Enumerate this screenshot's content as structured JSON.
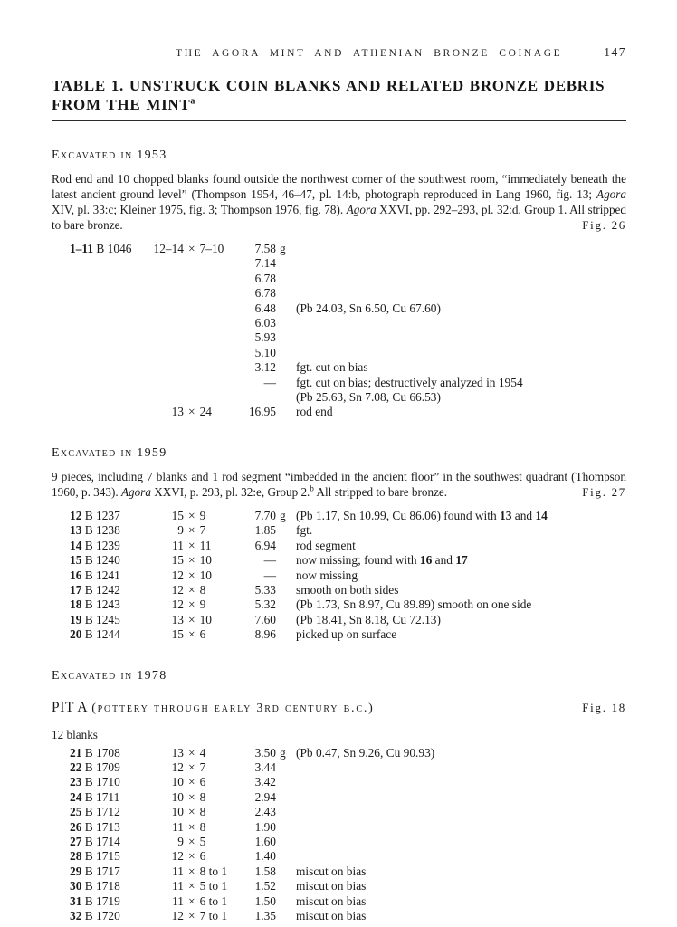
{
  "page": {
    "running_head": "THE AGORA MINT AND ATHENIAN BRONZE COINAGE",
    "page_number": "147",
    "title_line1": "TABLE 1. UNSTRUCK COIN BLANKS AND RELATED BRONZE DEBRIS",
    "title_line2": "FROM THE MINT",
    "title_note": "a"
  },
  "symbols": {
    "times": "×"
  },
  "sections": [
    {
      "heading": "Excavated in 1953",
      "intro": "Rod end and 10 chopped blanks found outside the northwest corner of the southwest room, “immediately beneath the latest ancient ground level” (Thompson 1954, 46–47, pl. 14:b, photograph reproduced in Lang 1960, fig. 13; *Agora* XIV, pl. 33:c; Kleiner 1975, fig. 3; Thompson 1976, fig. 78). *Agora* XXVI, pp. 292–293, pl. 32:d, Group 1. All stripped to bare bronze.",
      "fig": "Fig. 26",
      "rows": [
        {
          "num": "1–11",
          "id": "B 1046",
          "dim_w": "12–14",
          "dim_h": "7–10",
          "wt": "7.58",
          "unit": "g"
        },
        {
          "wt": "7.14"
        },
        {
          "wt": "6.78"
        },
        {
          "wt": "6.78"
        },
        {
          "wt": "6.48",
          "note": "(Pb 24.03, Sn 6.50, Cu 67.60)"
        },
        {
          "wt": "6.03"
        },
        {
          "wt": "5.93"
        },
        {
          "wt": "5.10"
        },
        {
          "wt": "3.12",
          "note": "fgt. cut on bias"
        },
        {
          "wt": "—",
          "note": "fgt. cut on bias; destructively analyzed in 1954"
        },
        {
          "note": "(Pb 25.63, Sn 7.08, Cu 66.53)"
        },
        {
          "dim_w": "13",
          "dim_h": "24",
          "wt": "16.95",
          "note": "rod end"
        }
      ]
    },
    {
      "heading": "Excavated in 1959",
      "intro": "9 pieces, including 7 blanks and 1 rod segment “imbedded in the ancient floor” in the southwest quadrant (Thompson 1960, p. 343). *Agora* XXVI, p. 293, pl. 32:e, Group 2.^b^ All stripped to bare bronze.",
      "fig": "Fig. 27",
      "rows": [
        {
          "num": "12",
          "id": "B 1237",
          "dim_w": "15",
          "dim_h": "9",
          "wt": "7.70",
          "unit": "g",
          "note": "(Pb 1.17, Sn 10.99, Cu 86.06) found with **13** and **14**"
        },
        {
          "num": "13",
          "id": "B 1238",
          "dim_w": "9",
          "dim_h": "7",
          "wt": "1.85",
          "note": "fgt."
        },
        {
          "num": "14",
          "id": "B 1239",
          "dim_w": "11",
          "dim_h": "11",
          "wt": "6.94",
          "note": "rod segment"
        },
        {
          "num": "15",
          "id": "B 1240",
          "dim_w": "15",
          "dim_h": "10",
          "wt": "—",
          "note": "now missing; found with **16** and **17**"
        },
        {
          "num": "16",
          "id": "B 1241",
          "dim_w": "12",
          "dim_h": "10",
          "wt": "—",
          "note": "now missing"
        },
        {
          "num": "17",
          "id": "B 1242",
          "dim_w": "12",
          "dim_h": "8",
          "wt": "5.33",
          "note": "smooth on both sides"
        },
        {
          "num": "18",
          "id": "B 1243",
          "dim_w": "12",
          "dim_h": "9",
          "wt": "5.32",
          "note": "(Pb 1.73, Sn 8.97, Cu 89.89) smooth on one side"
        },
        {
          "num": "19",
          "id": "B 1245",
          "dim_w": "13",
          "dim_h": "10",
          "wt": "7.60",
          "note": "(Pb 18.41, Sn 8.18, Cu 72.13)"
        },
        {
          "num": "20",
          "id": "B 1244",
          "dim_w": "15",
          "dim_h": "6",
          "wt": "8.96",
          "note": "picked up on surface"
        }
      ]
    },
    {
      "heading": "Excavated in 1978",
      "pit": {
        "label": "PIT A",
        "paren": "(pottery through early 3rd century b.c.)",
        "fig": "Fig. 18"
      },
      "lead": "12 blanks",
      "rows": [
        {
          "num": "21",
          "id": "B 1708",
          "dim_w": "13",
          "dim_h": "4",
          "wt": "3.50",
          "unit": "g",
          "note": "(Pb 0.47, Sn 9.26, Cu 90.93)"
        },
        {
          "num": "22",
          "id": "B 1709",
          "dim_w": "12",
          "dim_h": "7",
          "wt": "3.44"
        },
        {
          "num": "23",
          "id": "B 1710",
          "dim_w": "10",
          "dim_h": "6",
          "wt": "3.42"
        },
        {
          "num": "24",
          "id": "B 1711",
          "dim_w": "10",
          "dim_h": "8",
          "wt": "2.94"
        },
        {
          "num": "25",
          "id": "B 1712",
          "dim_w": "10",
          "dim_h": "8",
          "wt": "2.43"
        },
        {
          "num": "26",
          "id": "B 1713",
          "dim_w": "11",
          "dim_h": "8",
          "wt": "1.90"
        },
        {
          "num": "27",
          "id": "B 1714",
          "dim_w": "9",
          "dim_h": "5",
          "wt": "1.60"
        },
        {
          "num": "28",
          "id": "B 1715",
          "dim_w": "12",
          "dim_h": "6",
          "wt": "1.40"
        },
        {
          "num": "29",
          "id": "B 1717",
          "dim_w": "11",
          "dim_h": "8 to 1",
          "wt": "1.58",
          "note": "miscut on bias"
        },
        {
          "num": "30",
          "id": "B 1718",
          "dim_w": "11",
          "dim_h": "5 to 1",
          "wt": "1.52",
          "note": "miscut on bias"
        },
        {
          "num": "31",
          "id": "B 1719",
          "dim_w": "11",
          "dim_h": "6 to 1",
          "wt": "1.50",
          "note": "miscut on bias"
        },
        {
          "num": "32",
          "id": "B 1720",
          "dim_w": "12",
          "dim_h": "7 to 1",
          "wt": "1.35",
          "note": "miscut on bias"
        }
      ]
    }
  ]
}
